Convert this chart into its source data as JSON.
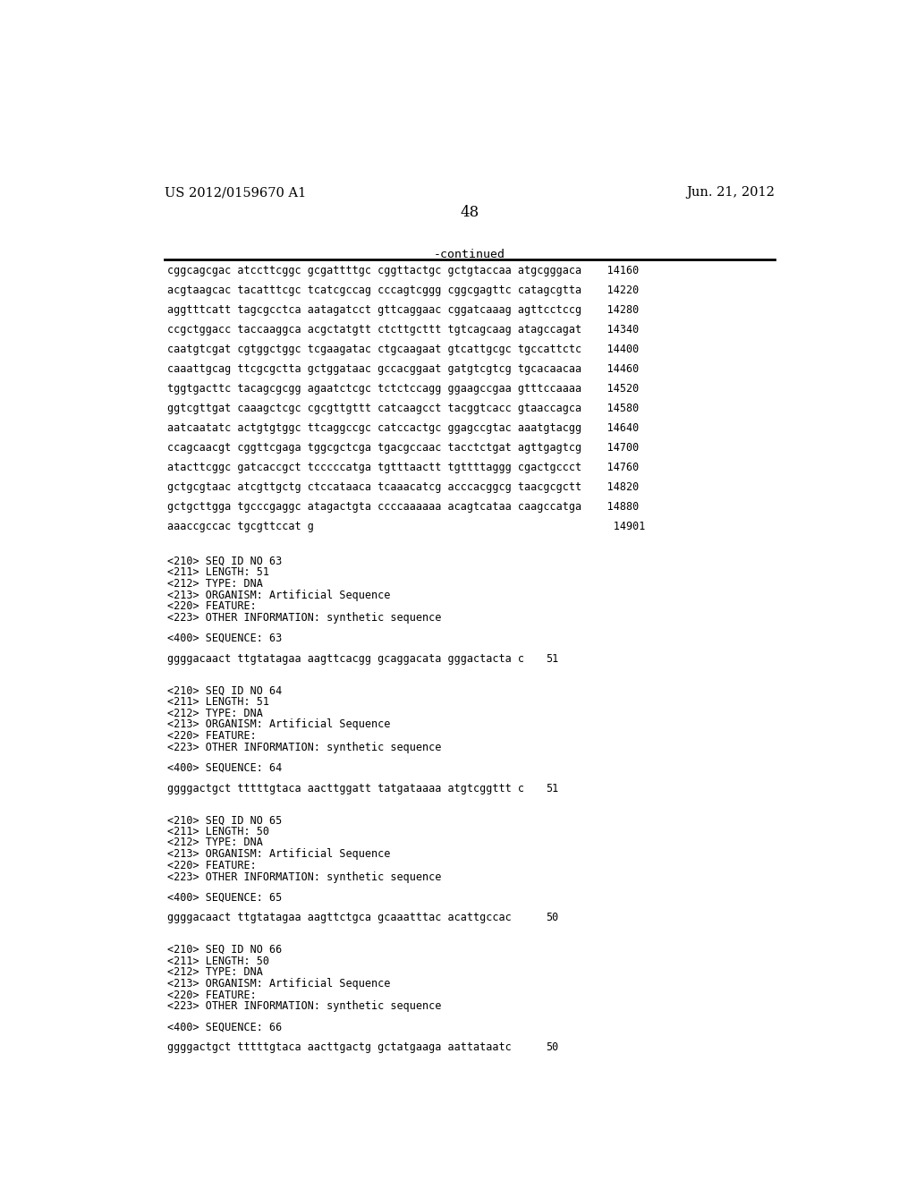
{
  "header_left": "US 2012/0159670 A1",
  "header_right": "Jun. 21, 2012",
  "page_number": "48",
  "continued_label": "-continued",
  "background_color": "#ffffff",
  "text_color": "#000000",
  "lines": [
    "cggcagcgac atccttcggc gcgattttgc cggttactgc gctgtaccaa atgcgggaca    14160",
    "acgtaagcac tacatttcgc tcatcgccag cccagtcggg cggcgagttc catagcgtta    14220",
    "aggtttcatt tagcgcctca aatagatcct gttcaggaac cggatcaaag agttcctccg    14280",
    "ccgctggacc taccaaggca acgctatgtt ctcttgcttt tgtcagcaag atagccagat    14340",
    "caatgtcgat cgtggctggc tcgaagatac ctgcaagaat gtcattgcgc tgccattctc    14400",
    "caaattgcag ttcgcgctta gctggataac gccacggaat gatgtcgtcg tgcacaacaa    14460",
    "tggtgacttc tacagcgcgg agaatctcgc tctctccagg ggaagccgaa gtttccaaaa    14520",
    "ggtcgttgat caaagctcgc cgcgttgttt catcaagcct tacggtcacc gtaaccagca    14580",
    "aatcaatatc actgtgtggc ttcaggccgc catccactgc ggagccgtac aaatgtacgg    14640",
    "ccagcaacgt cggttcgaga tggcgctcga tgacgccaac tacctctgat agttgagtcg    14700",
    "atacttcggc gatcaccgct tcccccatga tgtttaactt tgttttaggg cgactgccct    14760",
    "gctgcgtaac atcgttgctg ctccataaca tcaaacatcg acccacggcg taacgcgctt    14820",
    "gctgcttgga tgcccgaggc atagactgta ccccaaaaaa acagtcataa caagccatga    14880",
    "aaaccgccac tgcgttccat g                                               14901"
  ],
  "seq_blocks": [
    {
      "id": "63",
      "length": "51",
      "type": "DNA",
      "organism": "Artificial Sequence",
      "other_info": "synthetic sequence",
      "sequence": "ggggacaact ttgtatagaa aagttcacgg gcaggacata gggactacta c",
      "seq_length": "51"
    },
    {
      "id": "64",
      "length": "51",
      "type": "DNA",
      "organism": "Artificial Sequence",
      "other_info": "synthetic sequence",
      "sequence": "ggggactgct tttttgtaca aacttggatt tatgataaaa atgtcggttt c",
      "seq_length": "51"
    },
    {
      "id": "65",
      "length": "50",
      "type": "DNA",
      "organism": "Artificial Sequence",
      "other_info": "synthetic sequence",
      "sequence": "ggggacaact ttgtatagaa aagttctgca gcaaatttac acattgccac",
      "seq_length": "50"
    },
    {
      "id": "66",
      "length": "50",
      "type": "DNA",
      "organism": "Artificial Sequence",
      "other_info": "synthetic sequence",
      "sequence": "ggggactgct tttttgtaca aacttgactg gctatgaaga aattataatc",
      "seq_length": "50"
    }
  ]
}
